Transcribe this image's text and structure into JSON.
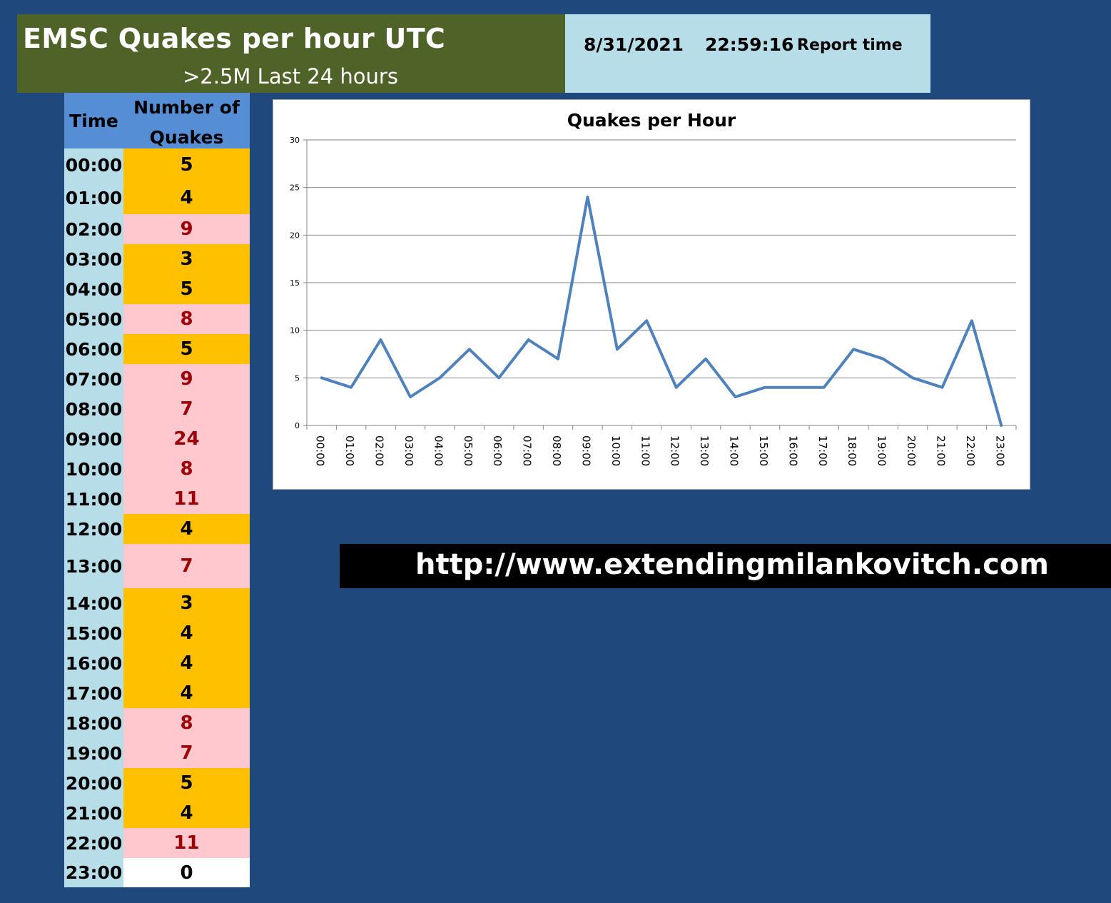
{
  "header": {
    "title": "EMSC Quakes per hour UTC",
    "subtitle": ">2.5M Last 24 hours",
    "report_date": "8/31/2021",
    "report_clock": "22:59:16",
    "report_label": "Report time"
  },
  "table": {
    "time_header": "Time",
    "count_header_line1": "Number of",
    "count_header_line2": "Quakes"
  },
  "colors": {
    "background": "#1f497d",
    "title_bg": "#4f6228",
    "report_bg": "#b7dde8",
    "header_bg": "#558ed5",
    "low_fill": "#ffc000",
    "high_fill": "#ffc7ce",
    "high_text": "#9c0006",
    "line": "#4f81bd"
  },
  "chart_data": {
    "type": "line",
    "title": "Quakes per Hour",
    "xlabel": "",
    "ylabel": "",
    "ylim": [
      0,
      30
    ],
    "yticks": [
      0,
      5,
      10,
      15,
      20,
      25,
      30
    ],
    "grid": true,
    "legend": "none",
    "categories": [
      "00:00",
      "01:00",
      "02:00",
      "03:00",
      "04:00",
      "05:00",
      "06:00",
      "07:00",
      "08:00",
      "09:00",
      "10:00",
      "11:00",
      "12:00",
      "13:00",
      "14:00",
      "15:00",
      "16:00",
      "17:00",
      "18:00",
      "19:00",
      "20:00",
      "21:00",
      "22:00",
      "23:00"
    ],
    "series": [
      {
        "values": [
          5,
          4,
          9,
          3,
          5,
          8,
          5,
          9,
          7,
          24,
          8,
          11,
          4,
          7,
          3,
          4,
          4,
          4,
          8,
          7,
          5,
          4,
          11,
          0
        ]
      }
    ]
  },
  "footer": {
    "url": "http://www.extendingmilankovitch.com"
  }
}
